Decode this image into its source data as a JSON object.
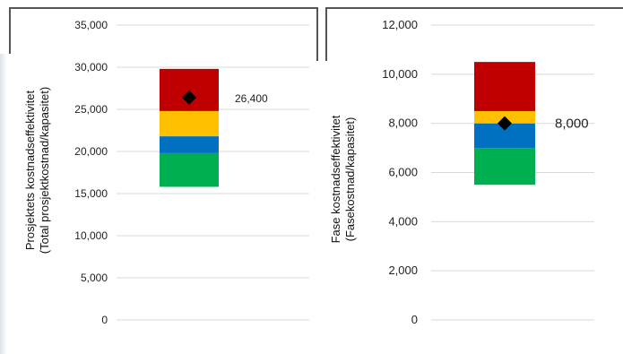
{
  "colors": {
    "red": "#c00000",
    "yellow": "#ffc000",
    "blue": "#0070c0",
    "green": "#00b050",
    "marker": "#000000",
    "grid": "#d9d9d9"
  },
  "chart_data": [
    {
      "type": "bar",
      "subtype": "stacked-range",
      "ylabel": [
        "Prosjektets kostnadseffektivitet",
        "(Total prosjektkostnad/kapasitet)"
      ],
      "xlabel": "",
      "ylim": [
        0,
        35000
      ],
      "yticks": [
        0,
        5000,
        10000,
        15000,
        20000,
        25000,
        30000,
        35000
      ],
      "ytick_labels": [
        "0",
        "5,000",
        "10,000",
        "15,000",
        "20,000",
        "25,000",
        "30,000",
        "35,000"
      ],
      "base": 15800,
      "segments": [
        {
          "color_key": "green",
          "from": 15800,
          "to": 19800
        },
        {
          "color_key": "blue",
          "from": 19800,
          "to": 21800
        },
        {
          "color_key": "yellow",
          "from": 21800,
          "to": 24800
        },
        {
          "color_key": "red",
          "from": 24800,
          "to": 29800
        }
      ],
      "marker": {
        "value": 26400,
        "label": "26,400"
      },
      "grid": "horizontal"
    },
    {
      "type": "bar",
      "subtype": "stacked-range",
      "ylabel": [
        "Fase kostnadseffektivitet",
        "(Fasekostnad/kapasitet)"
      ],
      "xlabel": "",
      "ylim": [
        0,
        12000
      ],
      "yticks": [
        0,
        2000,
        4000,
        6000,
        8000,
        10000,
        12000
      ],
      "ytick_labels": [
        "0",
        "2,000",
        "4,000",
        "6,000",
        "8,000",
        "10,000",
        "12,000"
      ],
      "base": 5500,
      "segments": [
        {
          "color_key": "green",
          "from": 5500,
          "to": 7000
        },
        {
          "color_key": "blue",
          "from": 7000,
          "to": 8000
        },
        {
          "color_key": "yellow",
          "from": 8000,
          "to": 8500
        },
        {
          "color_key": "red",
          "from": 8500,
          "to": 10500
        }
      ],
      "marker": {
        "value": 8000,
        "label": "8,000"
      },
      "grid": "horizontal"
    }
  ]
}
